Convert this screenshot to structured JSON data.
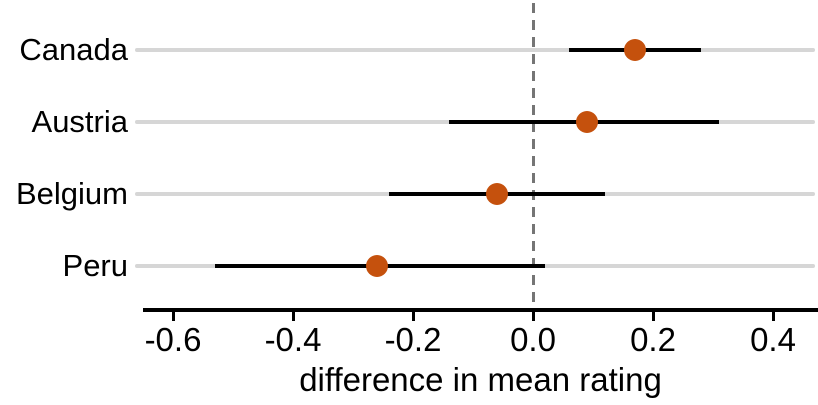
{
  "chart_data": {
    "type": "scatter",
    "subtype": "point-estimate-with-confidence-interval",
    "title": "",
    "xlabel": "difference in mean rating",
    "ylabel": "",
    "categories": [
      "Canada",
      "Austria",
      "Belgium",
      "Peru"
    ],
    "points": [
      {
        "label": "Canada",
        "mean": 0.17,
        "ci_low": 0.06,
        "ci_high": 0.28
      },
      {
        "label": "Austria",
        "mean": 0.09,
        "ci_low": -0.14,
        "ci_high": 0.31
      },
      {
        "label": "Belgium",
        "mean": -0.06,
        "ci_low": -0.24,
        "ci_high": 0.12
      },
      {
        "label": "Peru",
        "mean": -0.26,
        "ci_low": -0.53,
        "ci_high": 0.02
      }
    ],
    "x_ticks": [
      -0.6,
      -0.4,
      -0.2,
      0.0,
      0.2,
      0.4
    ],
    "x_tick_labels": [
      "-0.6",
      "-0.4",
      "-0.2",
      "0.0",
      "0.2",
      "0.4"
    ],
    "xlim": [
      -0.65,
      0.475
    ],
    "reference_line_x": 0.0,
    "grid": "horizontal gridline per category, full plot width",
    "legend": "none",
    "colors": {
      "point": "#C5510D",
      "interval": "#000000",
      "gridline": "#D6D6D6",
      "reference_line": "#757575",
      "axis": "#000000",
      "text": "#000000"
    }
  }
}
